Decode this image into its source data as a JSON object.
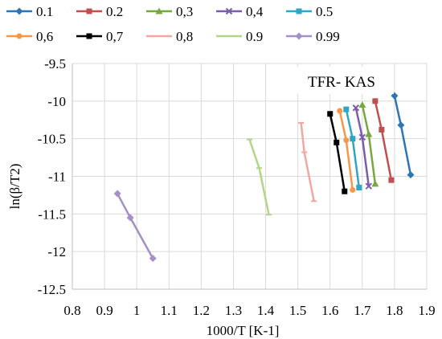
{
  "chart_data": {
    "type": "line",
    "title": "",
    "xlabel": "1000/T [K-1]",
    "ylabel": "ln(β/T2)",
    "xlim": [
      0.8,
      1.9
    ],
    "ylim": [
      -12.5,
      -9.5
    ],
    "xticks": [
      "0.8",
      "0.9",
      "1",
      "1.1",
      "1.2",
      "1.3",
      "1.4",
      "1.5",
      "1.6",
      "1.7",
      "1.8",
      "1.9"
    ],
    "yticks": [
      "-9.5",
      "-10",
      "-10.5",
      "-11",
      "-11.5",
      "-12",
      "-12.5"
    ],
    "grid": true,
    "legend_position": "top",
    "annotation": "TFR- KAS",
    "series": [
      {
        "name": "0.1",
        "color": "#2e75b6",
        "marker": "diamond",
        "points": [
          [
            1.8,
            -9.93
          ],
          [
            1.82,
            -10.32
          ],
          [
            1.85,
            -10.98
          ]
        ]
      },
      {
        "name": "0.2",
        "color": "#c0504d",
        "marker": "square",
        "points": [
          [
            1.74,
            -10.0
          ],
          [
            1.76,
            -10.38
          ],
          [
            1.79,
            -11.05
          ]
        ]
      },
      {
        "name": "0,3",
        "color": "#77a83f",
        "marker": "triangle",
        "points": [
          [
            1.7,
            -10.05
          ],
          [
            1.72,
            -10.44
          ],
          [
            1.74,
            -11.1
          ]
        ]
      },
      {
        "name": "0,4",
        "color": "#7b5ea7",
        "marker": "x",
        "points": [
          [
            1.68,
            -10.09
          ],
          [
            1.7,
            -10.48
          ],
          [
            1.72,
            -11.13
          ]
        ]
      },
      {
        "name": "0.5",
        "color": "#31a5c4",
        "marker": "square",
        "points": [
          [
            1.65,
            -10.11
          ],
          [
            1.67,
            -10.5
          ],
          [
            1.69,
            -11.15
          ]
        ]
      },
      {
        "name": "0,6",
        "color": "#f79646",
        "marker": "circle",
        "points": [
          [
            1.63,
            -10.13
          ],
          [
            1.65,
            -10.52
          ],
          [
            1.67,
            -11.18
          ]
        ]
      },
      {
        "name": "0,7",
        "color": "#000000",
        "marker": "square",
        "points": [
          [
            1.6,
            -10.17
          ],
          [
            1.62,
            -10.55
          ],
          [
            1.645,
            -11.2
          ]
        ]
      },
      {
        "name": "0,8",
        "color": "#f4a7a2",
        "marker": "dash",
        "points": [
          [
            1.51,
            -10.29
          ],
          [
            1.52,
            -10.68
          ],
          [
            1.55,
            -11.33
          ]
        ]
      },
      {
        "name": "0.9",
        "color": "#b3d58a",
        "marker": "dash",
        "points": [
          [
            1.35,
            -10.51
          ],
          [
            1.38,
            -10.89
          ],
          [
            1.41,
            -11.51
          ]
        ]
      },
      {
        "name": "0.99",
        "color": "#a48fc7",
        "marker": "diamond",
        "points": [
          [
            0.94,
            -11.23
          ],
          [
            0.98,
            -11.55
          ],
          [
            1.05,
            -12.09
          ]
        ]
      }
    ]
  }
}
